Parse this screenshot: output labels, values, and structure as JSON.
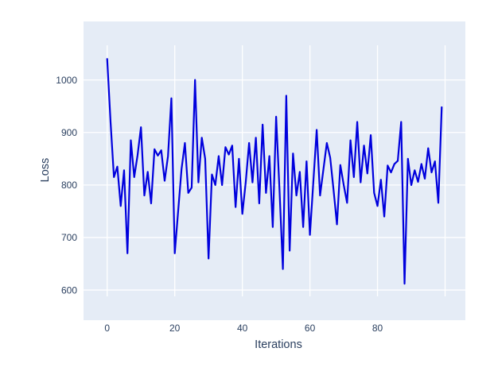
{
  "figure": {
    "title": ""
  },
  "chart_data": {
    "type": "line",
    "title": "",
    "xlabel": "Iterations",
    "ylabel": "Loss",
    "legend": "none",
    "grid": true,
    "x_ticks": [
      0,
      20,
      40,
      60,
      80
    ],
    "x_gridlines": [
      0,
      20,
      40,
      60,
      80,
      100
    ],
    "y_ticks": [
      600,
      700,
      800,
      900,
      1000
    ],
    "x_range": [
      -7,
      106
    ],
    "y_range": [
      588,
      1066
    ],
    "x": [
      0,
      1,
      2,
      3,
      4,
      5,
      6,
      7,
      8,
      9,
      10,
      11,
      12,
      13,
      14,
      15,
      16,
      17,
      18,
      19,
      20,
      21,
      22,
      23,
      24,
      25,
      26,
      27,
      28,
      29,
      30,
      31,
      32,
      33,
      34,
      35,
      36,
      37,
      38,
      39,
      40,
      41,
      42,
      43,
      44,
      45,
      46,
      47,
      48,
      49,
      50,
      51,
      52,
      53,
      54,
      55,
      56,
      57,
      58,
      59,
      60,
      61,
      62,
      63,
      64,
      65,
      66,
      67,
      68,
      69,
      70,
      71,
      72,
      73,
      74,
      75,
      76,
      77,
      78,
      79,
      80,
      81,
      82,
      83,
      84,
      85,
      86,
      87,
      88,
      89,
      90,
      91,
      92,
      93,
      94,
      95,
      96,
      97,
      98,
      99
    ],
    "y": [
      1040,
      920,
      815,
      835,
      760,
      828,
      670,
      885,
      815,
      857,
      910,
      780,
      825,
      765,
      868,
      856,
      866,
      808,
      855,
      965,
      670,
      750,
      830,
      880,
      785,
      795,
      1000,
      805,
      890,
      850,
      660,
      820,
      800,
      855,
      800,
      872,
      858,
      875,
      758,
      850,
      745,
      805,
      880,
      805,
      890,
      765,
      915,
      785,
      855,
      720,
      930,
      790,
      640,
      970,
      675,
      860,
      780,
      825,
      720,
      845,
      705,
      805,
      905,
      780,
      830,
      880,
      852,
      790,
      725,
      838,
      800,
      766,
      885,
      815,
      920,
      805,
      875,
      822,
      895,
      785,
      760,
      810,
      740,
      837,
      824,
      840,
      846,
      920,
      612,
      850,
      800,
      828,
      806,
      840,
      812,
      870,
      824,
      845,
      766,
      948
    ],
    "colors": {
      "line": "#0000dd",
      "plot_bg": "#e5ecf6",
      "grid": "#ffffff",
      "text": "#2a3f5f",
      "paper_bg": "#ffffff"
    }
  }
}
